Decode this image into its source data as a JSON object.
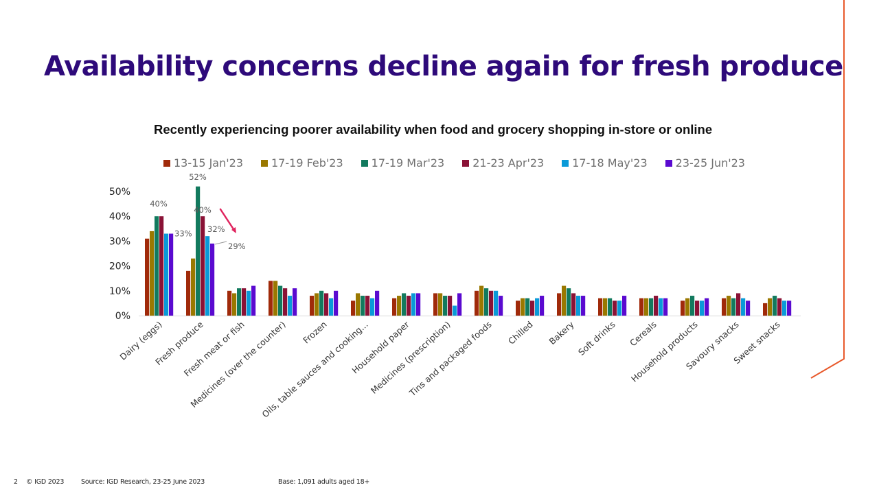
{
  "slide": {
    "title": "Availability concerns decline again for fresh produce",
    "accent_color": "#e8582a",
    "title_color": "#2e0a7a"
  },
  "footer": {
    "page_number": "2",
    "copyright": "© IGD 2023",
    "source": "Source: IGD Research, 23-25 June 2023",
    "base": "Base: 1,091 adults aged 18+"
  },
  "chart_data": {
    "type": "bar",
    "title": "Recently experiencing poorer availability when food and grocery shopping in-store or online",
    "xlabel": "",
    "ylabel": "",
    "ylim": [
      0,
      50
    ],
    "yticks": [
      0,
      10,
      20,
      30,
      40,
      50
    ],
    "ytick_labels": [
      "0%",
      "10%",
      "20%",
      "30%",
      "40%",
      "50%"
    ],
    "grid": false,
    "legend_position": "top",
    "categories": [
      "Dairy (eggs)",
      "Fresh produce",
      "Fresh meat or fish",
      "Medicines (over the counter)",
      "Frozen",
      "Oils, table sauces and cooking...",
      "Household paper",
      "Medicines (prescription)",
      "Tins and packaged foods",
      "Chilled",
      "Bakery",
      "Soft drinks",
      "Cereals",
      "Household products",
      "Savoury snacks",
      "Sweet snacks"
    ],
    "series": [
      {
        "name": "13-15 Jan'23",
        "color": "#a02a0a",
        "values": [
          31,
          18,
          10,
          14,
          8,
          6,
          7,
          9,
          10,
          6,
          9,
          7,
          7,
          6,
          7,
          5
        ]
      },
      {
        "name": "17-19 Feb'23",
        "color": "#9a7800",
        "values": [
          34,
          23,
          9,
          14,
          9,
          9,
          8,
          9,
          12,
          7,
          12,
          7,
          7,
          7,
          8,
          7
        ]
      },
      {
        "name": "17-19 Mar'23",
        "color": "#127a5e",
        "values": [
          40,
          52,
          11,
          12,
          10,
          8,
          9,
          8,
          11,
          7,
          11,
          7,
          7,
          8,
          7,
          8
        ]
      },
      {
        "name": "21-23 Apr'23",
        "color": "#8a1236",
        "values": [
          40,
          40,
          11,
          11,
          9,
          8,
          8,
          8,
          10,
          6,
          9,
          6,
          8,
          6,
          9,
          7
        ]
      },
      {
        "name": "17-18 May'23",
        "color": "#0a9ad8",
        "values": [
          33,
          32,
          10,
          8,
          7,
          7,
          9,
          4,
          10,
          7,
          8,
          6,
          7,
          6,
          7,
          6
        ]
      },
      {
        "name": "23-25 Jun'23",
        "color": "#5a0ad0",
        "values": [
          33,
          29,
          12,
          11,
          10,
          10,
          9,
          9,
          8,
          8,
          8,
          8,
          7,
          7,
          6,
          6
        ]
      }
    ],
    "data_labels": [
      {
        "category": "Dairy (eggs)",
        "series": "17-19 Mar'23",
        "text": "40%"
      },
      {
        "category": "Dairy (eggs)",
        "series": "23-25 Jun'23",
        "text": "33%"
      },
      {
        "category": "Fresh produce",
        "series": "17-19 Mar'23",
        "text": "52%"
      },
      {
        "category": "Fresh produce",
        "series": "21-23 Apr'23",
        "text": "40%"
      },
      {
        "category": "Fresh produce",
        "series": "17-18 May'23",
        "text": "32%"
      },
      {
        "category": "Fresh produce",
        "series": "23-25 Jun'23",
        "text": "29%"
      }
    ],
    "annotations": [
      {
        "type": "arrow",
        "color": "#e0245e",
        "meaning": "decline in Fresh produce from 40% to 29%"
      }
    ]
  }
}
